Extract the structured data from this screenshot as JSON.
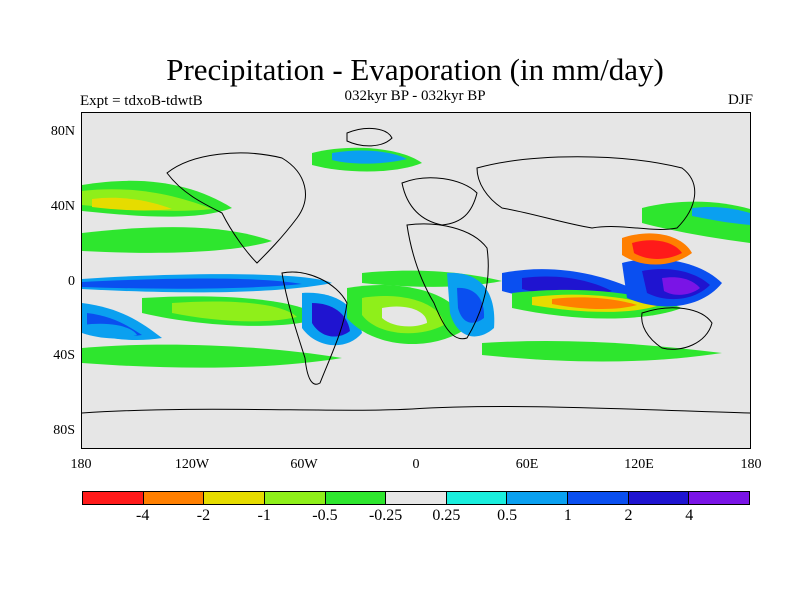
{
  "figure": {
    "title": "Precipitation - Evaporation (in mm/day)",
    "subtitle": "032kyr BP - 032kyr BP",
    "experiment": "Expt = tdxoB-tdwtB",
    "season": "DJF"
  },
  "axes": {
    "lat_ticks": [
      "80N",
      "40N",
      "0",
      "40S",
      "80S"
    ],
    "lon_ticks": [
      "180",
      "120W",
      "60W",
      "0",
      "60E",
      "120E",
      "180"
    ]
  },
  "colorbar": {
    "colors": [
      "#ff1a1a",
      "#ff7f00",
      "#e6dc00",
      "#8fef1a",
      "#2ee62e",
      "#e6e6e6",
      "#1aeedd",
      "#0aa0f0",
      "#0a4ff0",
      "#1f14d0",
      "#7a14e6"
    ],
    "labels": [
      "-4",
      "-2",
      "-1",
      "-0.5",
      "-0.25",
      "0.25",
      "0.5",
      "1",
      "2",
      "4"
    ]
  }
}
